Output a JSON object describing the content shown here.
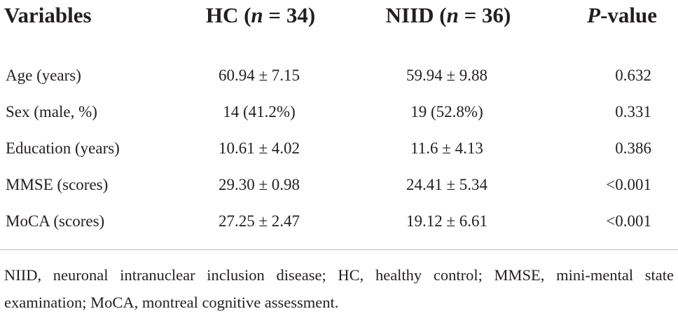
{
  "header": {
    "columns": [
      [
        {
          "text": "Variables",
          "italic": false
        }
      ],
      [
        {
          "text": "HC (",
          "italic": false
        },
        {
          "text": "n",
          "italic": true
        },
        {
          "text": " = 34)",
          "italic": false
        }
      ],
      [
        {
          "text": "NIID (",
          "italic": false
        },
        {
          "text": "n",
          "italic": true
        },
        {
          "text": " = 36)",
          "italic": false
        }
      ],
      [
        {
          "text": "P",
          "italic": true
        },
        {
          "text": "-value",
          "italic": false
        }
      ]
    ]
  },
  "table": {
    "rows": [
      [
        "Age (years)",
        "60.94 ± 7.15",
        "59.94 ± 9.88",
        "0.632"
      ],
      [
        "Sex (male, %)",
        "14 (41.2%)",
        "19 (52.8%)",
        "0.331"
      ],
      [
        "Education (years)",
        "10.61 ± 4.02",
        "11.6 ± 4.13",
        "0.386"
      ],
      [
        "MMSE (scores)",
        "29.30 ± 0.98",
        "24.41 ± 5.34",
        "<0.001"
      ],
      [
        "MoCA (scores)",
        "27.25 ± 2.47",
        "19.12 ± 6.61",
        "<0.001"
      ]
    ]
  },
  "footnote": "NIID, neuronal intranuclear inclusion disease; HC, healthy control; MMSE, mini-mental state examination; MoCA, montreal cognitive assessment."
}
